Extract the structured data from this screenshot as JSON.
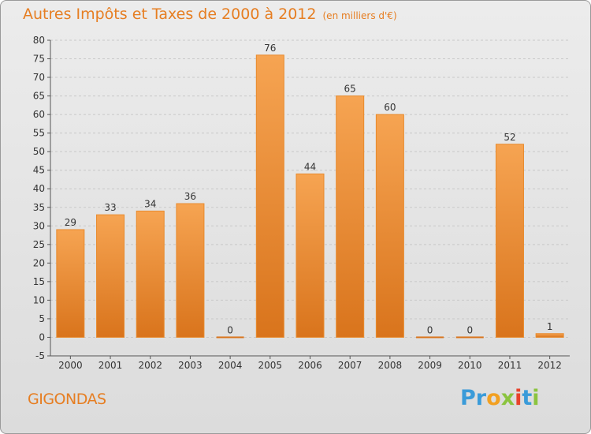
{
  "header": {
    "title": "Autres Impôts et Taxes de 2000 à 2012",
    "unit": "(en milliers d'€)"
  },
  "footer": {
    "commune": "GIGONDAS",
    "logo_letters": [
      {
        "ch": "P",
        "color": "#3a9bd9"
      },
      {
        "ch": "r",
        "color": "#3a9bd9"
      },
      {
        "ch": "o",
        "color": "#f2a021"
      },
      {
        "ch": "x",
        "color": "#8bc43f"
      },
      {
        "ch": "i",
        "color": "#e8432c"
      },
      {
        "ch": "t",
        "color": "#3a9bd9"
      },
      {
        "ch": "i",
        "color": "#8bc43f"
      }
    ]
  },
  "colors": {
    "bar_light": "#f6a452",
    "bar_dark": "#d9741c",
    "accent": "#e67e22",
    "grid": "#c8c8c8"
  },
  "chart_data": {
    "type": "bar",
    "title": "Autres Impôts et Taxes de 2000 à 2012",
    "subtitle": "(en milliers d'€)",
    "categories": [
      "2000",
      "2001",
      "2002",
      "2003",
      "2004",
      "2005",
      "2006",
      "2007",
      "2008",
      "2009",
      "2010",
      "2011",
      "2012"
    ],
    "values": [
      29,
      33,
      34,
      36,
      0,
      76,
      44,
      65,
      60,
      0,
      0,
      52,
      1
    ],
    "value_labels": [
      "29",
      "33",
      "34",
      "36",
      "0",
      "76",
      "44",
      "65",
      "60",
      "0",
      "0",
      "52",
      "1"
    ],
    "ylim": [
      -5,
      80
    ],
    "yticks": [
      -5,
      0,
      5,
      10,
      15,
      20,
      25,
      30,
      35,
      40,
      45,
      50,
      55,
      60,
      65,
      70,
      75,
      80
    ],
    "ytick_labels": [
      "-5",
      "0",
      "5",
      "10",
      "15",
      "20",
      "25",
      "30",
      "35",
      "40",
      "45",
      "50",
      "55",
      "60",
      "65",
      "70",
      "75",
      "80"
    ],
    "grid": true,
    "legend": "none"
  }
}
